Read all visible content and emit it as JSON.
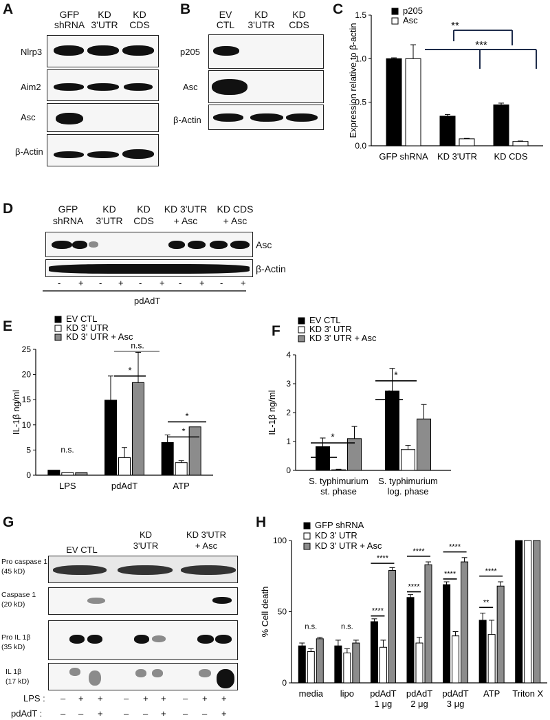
{
  "panels": {
    "A": "A",
    "B": "B",
    "C": "C",
    "D": "D",
    "E": "E",
    "F": "F",
    "G": "G",
    "H": "H"
  },
  "panelA": {
    "lanes": [
      [
        "GFP",
        "shRNA"
      ],
      [
        "KD",
        "3'UTR"
      ],
      [
        "KD",
        "CDS"
      ]
    ],
    "rows": [
      "Nlrp3",
      "Aim2",
      "Asc",
      "β-Actin"
    ]
  },
  "panelB": {
    "lanes": [
      [
        "EV",
        "CTL"
      ],
      [
        "KD",
        "3'UTR"
      ],
      [
        "KD",
        "CDS"
      ]
    ],
    "rows": [
      "p205",
      "Asc",
      "β-Actin"
    ]
  },
  "panelD": {
    "lanes": [
      [
        "GFP",
        "shRNA"
      ],
      [
        "KD",
        "3'UTR"
      ],
      [
        "KD",
        "CDS"
      ],
      [
        "KD 3'UTR",
        "+ Asc"
      ],
      [
        "KD CDS",
        "+ Asc"
      ]
    ],
    "rows": [
      "Asc",
      "β-Actin"
    ],
    "signs": [
      "-",
      "+",
      "-",
      "+",
      "-",
      "+",
      "-",
      "+",
      "-",
      "+"
    ],
    "treatment": "pdAdT"
  },
  "panelG": {
    "lanes": [
      [
        "EV CTL"
      ],
      [
        "KD",
        "3'UTR"
      ],
      [
        "KD 3'UTR",
        "+ Asc"
      ]
    ],
    "rows": [
      [
        "Pro caspase 1",
        "(45 kD)"
      ],
      [
        "Caspase 1",
        "(20 kD)"
      ],
      [
        "Pro IL 1β",
        "(35 kD)"
      ],
      [
        "IL 1β",
        "(17 kD)"
      ]
    ],
    "lps_label": "LPS :",
    "lps": [
      "–",
      "+",
      "+",
      "–",
      "+",
      "+",
      "–",
      "+",
      "+"
    ],
    "pdadt_label": "pdAdT :",
    "pdadt": [
      "–",
      "–",
      "+",
      "–",
      "–",
      "+",
      "–",
      "–",
      "+"
    ]
  },
  "chart_data": [
    {
      "panel": "C",
      "type": "bar",
      "ylabel": "Expression relative to β-actin",
      "ylim": [
        0,
        1.5
      ],
      "yticks": [
        "0.0",
        "0.5",
        "1.0",
        "1.5"
      ],
      "categories": [
        "GFP shRNA",
        "KD 3'UTR",
        "KD CDS"
      ],
      "series": [
        {
          "name": "p205",
          "color": "#000000",
          "values": [
            1.0,
            0.34,
            0.47
          ],
          "errors": [
            0.01,
            0.02,
            0.02
          ]
        },
        {
          "name": "Asc",
          "color": "#ffffff",
          "values": [
            1.0,
            0.08,
            0.05
          ],
          "errors": [
            0.16,
            0.005,
            0.005
          ]
        }
      ],
      "annotations": [
        "**",
        "***"
      ],
      "legend": "top-left"
    },
    {
      "panel": "E",
      "type": "bar",
      "ylabel": "IL-1β ng/ml",
      "ylim": [
        0,
        25
      ],
      "yticks": [
        "0",
        "5",
        "10",
        "15",
        "20",
        "25"
      ],
      "categories": [
        "LPS",
        "pdAdT",
        "ATP"
      ],
      "series": [
        {
          "name": "EV CTL",
          "color": "#000000",
          "values": [
            1.0,
            14.9,
            6.5
          ],
          "errors": [
            0,
            4.8,
            1.5
          ]
        },
        {
          "name": "KD 3' UTR",
          "color": "#ffffff",
          "values": [
            0.5,
            3.5,
            2.5
          ],
          "errors": [
            0,
            2.0,
            0.4
          ]
        },
        {
          "name": "KD 3' UTR + Asc",
          "color": "#8c8c8c",
          "values": [
            0.5,
            18.4,
            9.6
          ],
          "errors": [
            0,
            6.0,
            0
          ]
        }
      ],
      "annotations": [
        "n.s.",
        "*",
        "n.s.",
        "*",
        "*"
      ],
      "legend": "top-left"
    },
    {
      "panel": "F",
      "type": "bar",
      "ylabel": "IL-1β ng/ml",
      "ylim": [
        0,
        4
      ],
      "yticks": [
        "0",
        "1",
        "2",
        "3",
        "4"
      ],
      "categories": [
        [
          "S. typhimurium",
          "st. phase"
        ],
        [
          "S. typhimurium",
          "log. phase"
        ]
      ],
      "series": [
        {
          "name": "EV CTL",
          "color": "#000000",
          "values": [
            0.82,
            2.75
          ],
          "errors": [
            0.3,
            0.78
          ]
        },
        {
          "name": "KD 3' UTR",
          "color": "#ffffff",
          "values": [
            0.02,
            0.72
          ],
          "errors": [
            0.02,
            0.15
          ]
        },
        {
          "name": "KD 3' UTR + Asc",
          "color": "#8c8c8c",
          "values": [
            1.1,
            1.78
          ],
          "errors": [
            0.42,
            0.5
          ]
        }
      ],
      "annotations": [
        "*",
        "*",
        "*",
        "*"
      ],
      "legend": "top-left"
    },
    {
      "panel": "H",
      "type": "bar",
      "ylabel": "% Cell death",
      "ylim": [
        0,
        100
      ],
      "yticks": [
        "0",
        "50",
        "100"
      ],
      "categories": [
        [
          "media"
        ],
        [
          "lipo"
        ],
        [
          "pdAdT",
          "1 μg"
        ],
        [
          "pdAdT",
          "2 μg"
        ],
        [
          "pdAdT",
          "3 μg"
        ],
        [
          "ATP"
        ],
        [
          "Triton X"
        ]
      ],
      "series": [
        {
          "name": "GFP shRNA",
          "color": "#000000",
          "values": [
            26,
            26,
            43,
            60,
            69,
            44,
            100
          ],
          "errors": [
            2,
            4,
            2,
            2,
            2,
            5,
            0
          ]
        },
        {
          "name": "KD 3' UTR",
          "color": "#ffffff",
          "values": [
            22,
            21,
            25,
            28,
            33,
            34,
            100
          ],
          "errors": [
            2,
            3,
            5,
            4,
            3,
            10,
            0
          ]
        },
        {
          "name": "KD 3' UTR + Asc",
          "color": "#8c8c8c",
          "values": [
            31,
            28,
            79,
            83,
            85,
            68,
            100
          ],
          "errors": [
            1,
            2,
            2,
            2,
            3,
            3,
            0
          ]
        }
      ],
      "annotations": [
        "n.s.",
        "n.s.",
        "****",
        "****",
        "****",
        "****",
        "****",
        "****",
        "**",
        "****"
      ],
      "legend": "top-left"
    }
  ]
}
